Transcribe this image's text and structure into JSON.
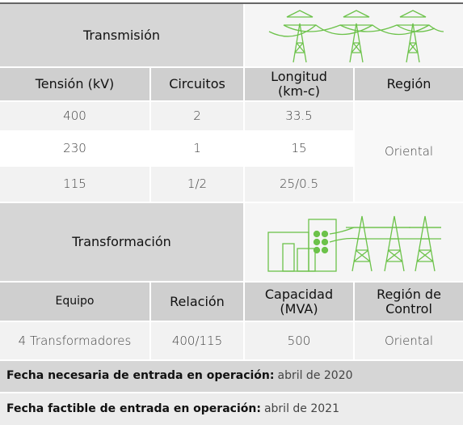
{
  "transmision": {
    "title": "Transmisión",
    "headers": [
      "Tensión (kV)",
      "Circuitos",
      "Longitud\n(km-c)",
      "Región"
    ],
    "rows": [
      [
        "400",
        "2",
        "33.5"
      ],
      [
        "230",
        "1",
        "15"
      ],
      [
        "115",
        "1/2",
        "25/0.5"
      ]
    ],
    "region": "Oriental"
  },
  "transformacion": {
    "title": "Transformación",
    "headers": [
      "Equipo",
      "Relación",
      "Capacidad\n(MVA)",
      "Región de\nControl"
    ],
    "rows": [
      [
        "4 Transformadores",
        "400/115",
        "500",
        "Oriental"
      ]
    ]
  },
  "notes": [
    {
      "label": "Fecha necesaria de entrada en operación:",
      "value": "abril de 2020"
    },
    {
      "label": "Fecha factible de entrada en operación:",
      "value": "abril de 2021"
    }
  ]
}
